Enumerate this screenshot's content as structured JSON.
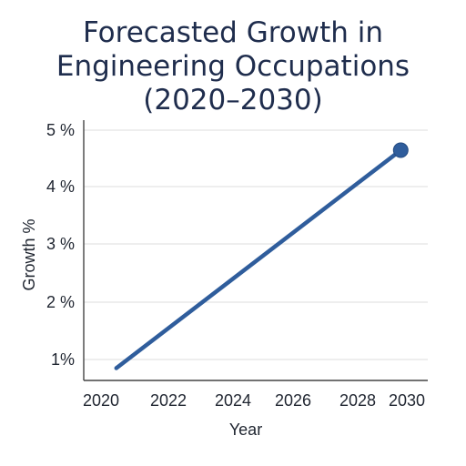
{
  "chart_data": {
    "type": "line",
    "title_lines": [
      "Forecasted Growth in",
      "Engineering Occupations",
      "(2020–2030)"
    ],
    "xlabel": "Year",
    "ylabel": "Growth %",
    "x_ticks": [
      "2020",
      "2022",
      "2024",
      "2026",
      "2028",
      "2030"
    ],
    "y_ticks": [
      "1%",
      "2 %",
      "3 %",
      "4 %",
      "5 %"
    ],
    "xlim": [
      2020,
      2030
    ],
    "ylim": [
      0.8,
      5.0
    ],
    "grid": "horizontal",
    "series": [
      {
        "x": [
          2020.5,
          2029.8
        ],
        "y": [
          0.85,
          4.65
        ],
        "color": "#2f5d9c",
        "end_marker": true
      }
    ]
  }
}
